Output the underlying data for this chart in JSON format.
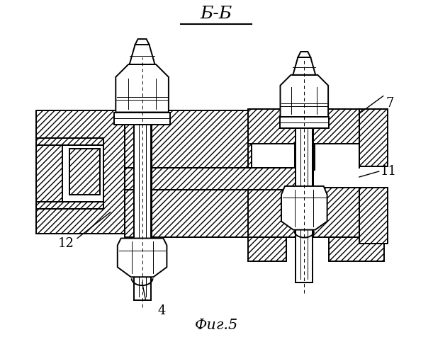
{
  "title": "Б-Б",
  "caption": "Фиг.5",
  "bg_color": "#ffffff",
  "line_color": "#000000",
  "lw": 1.4,
  "lw_thin": 0.7,
  "figsize": [
    6.11,
    5.0
  ],
  "dpi": 100
}
